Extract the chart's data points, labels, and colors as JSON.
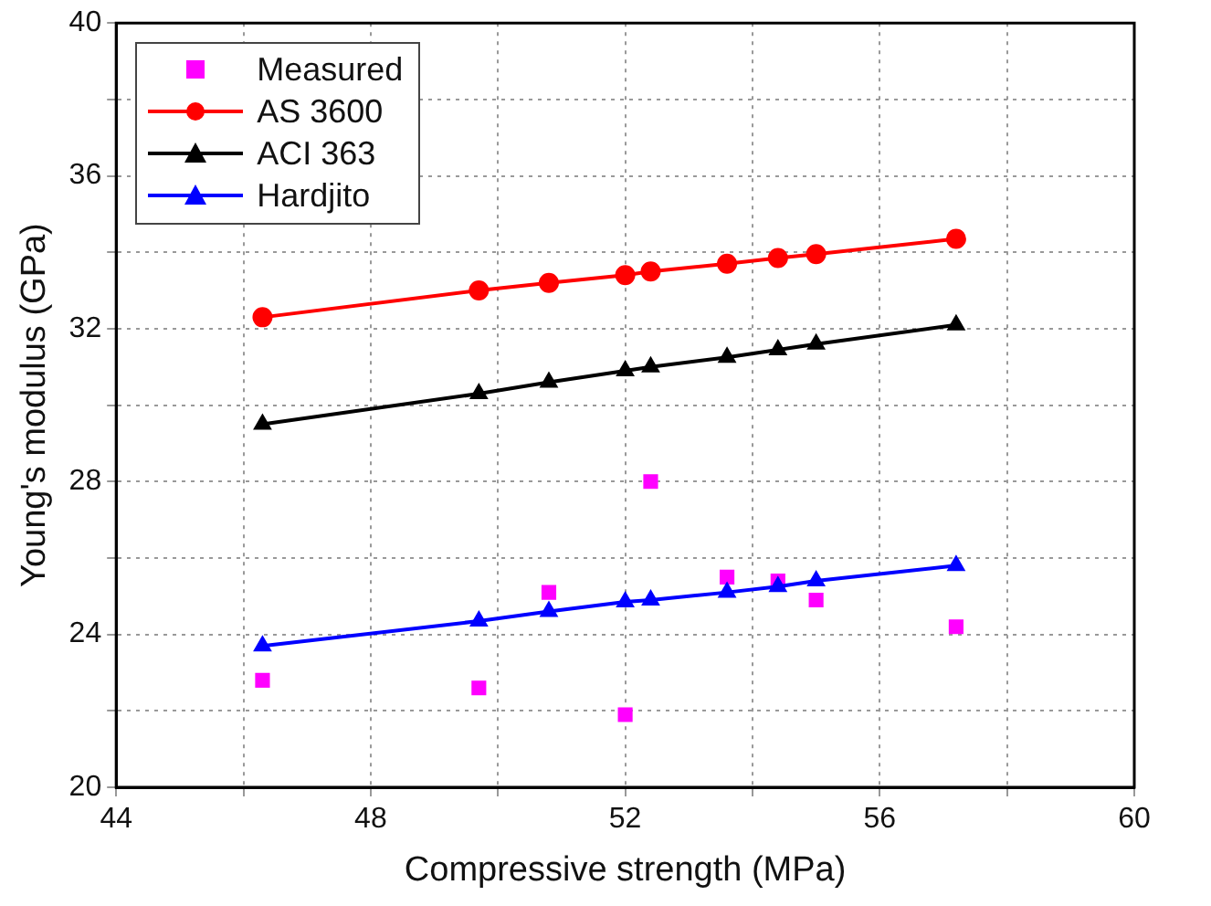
{
  "chart_data": {
    "type": "scatter",
    "xlabel": "Compressive strength (MPa)",
    "ylabel": "Young's modulus (GPa)",
    "x": [
      46.3,
      49.7,
      50.8,
      52.0,
      52.4,
      53.6,
      54.4,
      55.0,
      57.2
    ],
    "series": [
      {
        "name": "Measured",
        "type": "scatter",
        "marker": "square",
        "color": "#ff00ff",
        "values": [
          22.8,
          22.6,
          25.1,
          21.9,
          28.0,
          25.5,
          25.4,
          24.9,
          24.2
        ]
      },
      {
        "name": "AS 3600",
        "type": "line",
        "marker": "circle",
        "color": "#ff0000",
        "values": [
          32.3,
          33.0,
          33.2,
          33.4,
          33.5,
          33.7,
          33.85,
          33.95,
          34.35
        ]
      },
      {
        "name": "ACI 363",
        "type": "line",
        "marker": "triangle",
        "color": "#000000",
        "values": [
          29.5,
          30.3,
          30.6,
          30.9,
          31.0,
          31.25,
          31.45,
          31.6,
          32.1
        ]
      },
      {
        "name": "Hardjito",
        "type": "line",
        "marker": "triangle",
        "color": "#0000ff",
        "values": [
          23.7,
          24.35,
          24.6,
          24.85,
          24.9,
          25.1,
          25.25,
          25.4,
          25.8
        ]
      }
    ],
    "xlim": [
      44,
      60
    ],
    "xticks": [
      44,
      {
        "value": 46,
        "label": null
      },
      48,
      {
        "value": 50,
        "label": null
      },
      52,
      {
        "value": 54,
        "label": null
      },
      56,
      {
        "value": 58,
        "label": null
      },
      60
    ],
    "ylim": [
      20,
      40
    ],
    "yticks": [
      20,
      {
        "value": 22,
        "label": null
      },
      24,
      {
        "value": 26,
        "label": null
      },
      28,
      {
        "value": 30,
        "label": null
      },
      32,
      {
        "value": 34,
        "label": null
      },
      36,
      {
        "value": 38,
        "label": null
      },
      40
    ],
    "grid": true,
    "legend": "top left",
    "line_style": "solid"
  }
}
